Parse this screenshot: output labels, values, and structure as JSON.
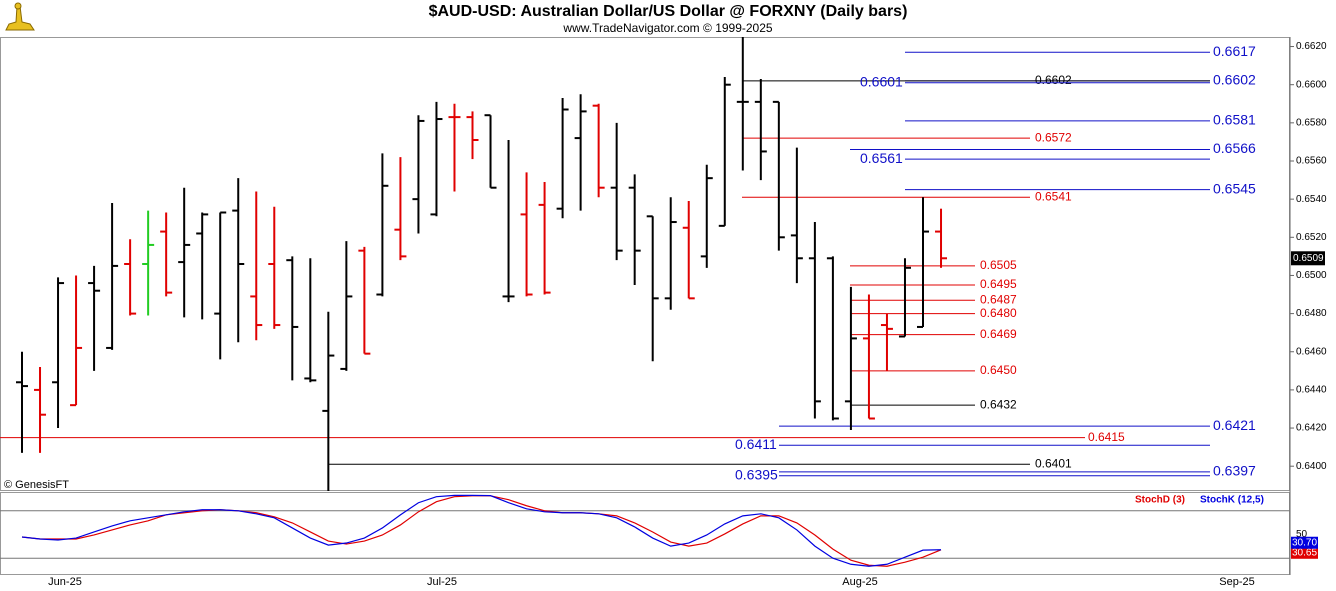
{
  "header": {
    "title": "$AUD-USD:  Australian Dollar/US Dollar @ FORXNY  (Daily bars)",
    "subtitle": "www.TradeNavigator.com © 1999-2025",
    "source": "© GenesisFT"
  },
  "chart_data": [
    {
      "type": "ohlc",
      "open": [
        0.6444,
        0.644,
        0.6444,
        0.6432,
        0.6496,
        0.6462,
        0.6506,
        0.6506,
        0.6523,
        0.6507,
        0.6522,
        0.648,
        0.6534,
        0.6489,
        0.6506,
        0.6508,
        0.6446,
        0.6429,
        0.6451,
        0.6513,
        0.649,
        0.6524,
        0.654,
        0.6532,
        0.6583,
        0.6583,
        0.6584,
        0.6489,
        0.6532,
        0.6537,
        0.6535,
        0.6572,
        0.6589,
        0.6546,
        0.6546,
        0.6531,
        0.6488,
        0.6525,
        0.651,
        0.6526,
        0.6591,
        0.6591,
        0.6591,
        0.6521,
        0.6509,
        0.6509,
        0.6434,
        0.6467,
        0.6474,
        0.6468,
        0.6473,
        0.6523
      ],
      "high": [
        0.646,
        0.6452,
        0.6499,
        0.65,
        0.6505,
        0.6538,
        0.6519,
        0.6534,
        0.6533,
        0.6546,
        0.6533,
        0.6533,
        0.6551,
        0.6544,
        0.6536,
        0.651,
        0.6509,
        0.6481,
        0.6518,
        0.6515,
        0.6564,
        0.6562,
        0.6584,
        0.6591,
        0.659,
        0.6586,
        0.6584,
        0.6571,
        0.6554,
        0.6549,
        0.6593,
        0.6595,
        0.659,
        0.658,
        0.6553,
        0.6531,
        0.6541,
        0.6539,
        0.6558,
        0.6604,
        0.6625,
        0.6603,
        0.6591,
        0.6567,
        0.6528,
        0.651,
        0.6494,
        0.649,
        0.648,
        0.6509,
        0.6541,
        0.6535
      ],
      "low": [
        0.6407,
        0.6407,
        0.642,
        0.6432,
        0.645,
        0.6461,
        0.6479,
        0.6479,
        0.6489,
        0.6478,
        0.6477,
        0.6456,
        0.6465,
        0.6466,
        0.6472,
        0.6445,
        0.6444,
        0.6387,
        0.645,
        0.6459,
        0.6489,
        0.6508,
        0.6522,
        0.6531,
        0.6544,
        0.6561,
        0.6546,
        0.6486,
        0.6489,
        0.649,
        0.653,
        0.6534,
        0.6541,
        0.6508,
        0.6495,
        0.6455,
        0.6482,
        0.6488,
        0.6504,
        0.6526,
        0.6555,
        0.655,
        0.6513,
        0.6496,
        0.6425,
        0.6424,
        0.6419,
        0.6425,
        0.645,
        0.6468,
        0.6473,
        0.6504
      ],
      "close": [
        0.6442,
        0.6427,
        0.6496,
        0.6462,
        0.6492,
        0.6505,
        0.648,
        0.6516,
        0.6491,
        0.6516,
        0.6532,
        0.6533,
        0.6506,
        0.6474,
        0.6474,
        0.6473,
        0.6445,
        0.6458,
        0.6489,
        0.6459,
        0.6547,
        0.651,
        0.6581,
        0.6582,
        0.6583,
        0.6571,
        0.6546,
        0.6489,
        0.649,
        0.6491,
        0.6587,
        0.6586,
        0.6546,
        0.6513,
        0.6513,
        0.6488,
        0.6528,
        0.6488,
        0.6551,
        0.66,
        0.6591,
        0.6565,
        0.652,
        0.6509,
        0.6434,
        0.6425,
        0.6467,
        0.6425,
        0.6472,
        0.6504,
        0.6523,
        0.6509
      ],
      "colors": [
        "#000000",
        "#e00000",
        "#000000",
        "#e00000",
        "#000000",
        "#000000",
        "#e00000",
        "#22cc22",
        "#e00000",
        "#000000",
        "#000000",
        "#000000",
        "#000000",
        "#e00000",
        "#e00000",
        "#000000",
        "#000000",
        "#000000",
        "#000000",
        "#e00000",
        "#000000",
        "#e00000",
        "#000000",
        "#000000",
        "#e00000",
        "#e00000",
        "#000000",
        "#000000",
        "#e00000",
        "#e00000",
        "#000000",
        "#000000",
        "#e00000",
        "#000000",
        "#000000",
        "#000000",
        "#000000",
        "#e00000",
        "#000000",
        "#000000",
        "#000000",
        "#000000",
        "#000000",
        "#000000",
        "#000000",
        "#000000",
        "#000000",
        "#e00000",
        "#e00000",
        "#000000",
        "#000000",
        "#e00000"
      ],
      "ylim": [
        0.6387,
        0.6625
      ],
      "yticks": [
        {
          "value": 0.662,
          "label": "0.6620"
        },
        {
          "value": 0.66,
          "label": "0.6600"
        },
        {
          "value": 0.658,
          "label": "0.6580"
        },
        {
          "value": 0.656,
          "label": "0.6560"
        },
        {
          "value": 0.654,
          "label": "0.6540"
        },
        {
          "value": 0.652,
          "label": "0.6520"
        },
        {
          "value": 0.65,
          "label": "0.6500"
        },
        {
          "value": 0.648,
          "label": "0.6480"
        },
        {
          "value": 0.646,
          "label": "0.6460"
        },
        {
          "value": 0.644,
          "label": "0.6440"
        },
        {
          "value": 0.642,
          "label": "0.6420"
        },
        {
          "value": 0.64,
          "label": "0.6400"
        }
      ],
      "last_price": {
        "value": 0.6509,
        "label": "0.6509"
      },
      "levels": [
        {
          "value": 0.6617,
          "label": "0.6617",
          "color": "#1010c8"
        },
        {
          "value": 0.6602,
          "label": "0.6602",
          "color": "#1010c8"
        },
        {
          "value": 0.6602,
          "label": "0.6602",
          "color": "#000000"
        },
        {
          "value": 0.6601,
          "label": "0.6601",
          "color": "#1010c8"
        },
        {
          "value": 0.6581,
          "label": "0.6581",
          "color": "#1010c8"
        },
        {
          "value": 0.6572,
          "label": "0.6572",
          "color": "#e00000"
        },
        {
          "value": 0.6566,
          "label": "0.6566",
          "color": "#1010c8"
        },
        {
          "value": 0.6561,
          "label": "0.6561",
          "color": "#1010c8"
        },
        {
          "value": 0.6545,
          "label": "0.6545",
          "color": "#1010c8"
        },
        {
          "value": 0.6541,
          "label": "0.6541",
          "color": "#e00000"
        },
        {
          "value": 0.6505,
          "label": "0.6505",
          "color": "#e00000"
        },
        {
          "value": 0.6495,
          "label": "0.6495",
          "color": "#e00000"
        },
        {
          "value": 0.6487,
          "label": "0.6487",
          "color": "#e00000"
        },
        {
          "value": 0.648,
          "label": "0.6480",
          "color": "#e00000"
        },
        {
          "value": 0.6469,
          "label": "0.6469",
          "color": "#e00000"
        },
        {
          "value": 0.645,
          "label": "0.6450",
          "color": "#e00000"
        },
        {
          "value": 0.6432,
          "label": "0.6432",
          "color": "#000000"
        },
        {
          "value": 0.6421,
          "label": "0.6421",
          "color": "#1010c8"
        },
        {
          "value": 0.6415,
          "label": "0.6415",
          "color": "#e00000"
        },
        {
          "value": 0.6411,
          "label": "0.6411",
          "color": "#1010c8"
        },
        {
          "value": 0.6401,
          "label": "0.6401",
          "color": "#000000"
        },
        {
          "value": 0.6397,
          "label": "0.6397",
          "color": "#1010c8"
        },
        {
          "value": 0.6395,
          "label": "0.6395",
          "color": "#1010c8"
        }
      ],
      "xlabels": [
        "Jun-25",
        "Jul-25",
        "Aug-25",
        "Sep-25"
      ]
    },
    {
      "type": "line",
      "ylim": [
        0,
        100
      ],
      "yticks": [
        50
      ],
      "levels": [
        20,
        80
      ],
      "series": [
        {
          "name": "StochD (3)",
          "color": "#e00000",
          "last_label": "30.65",
          "values": [
            46.8,
            44.3,
            44.3,
            44.3,
            49.4,
            55.8,
            62.1,
            67.3,
            74.9,
            77.5,
            80.0,
            81.3,
            80.0,
            77.5,
            72.4,
            64.7,
            53.2,
            41.7,
            37.9,
            41.7,
            49.4,
            62.1,
            78.7,
            91.5,
            97.9,
            99,
            99,
            94.1,
            86.4,
            80.0,
            77.5,
            77.5,
            76.2,
            73.6,
            64.7,
            53.2,
            40.4,
            35.3,
            39.2,
            50.7,
            63.4,
            73.6,
            73.6,
            64.7,
            49.4,
            31.5,
            17.4,
            11.1,
            9.8,
            14.9,
            21.3,
            30.65
          ]
        },
        {
          "name": "StochK (12,5)",
          "color": "#0000e0",
          "last_label": "30.70",
          "values": [
            46.8,
            44.3,
            43.0,
            45.5,
            53.2,
            60.9,
            67.3,
            71.1,
            74.9,
            78.7,
            81.3,
            81.3,
            80.0,
            76.2,
            71.1,
            58.3,
            45.5,
            36.6,
            39.2,
            45.5,
            58.3,
            74.9,
            90.2,
            97.9,
            99.5,
            99.5,
            99.2,
            90.2,
            82.5,
            78.7,
            77.5,
            77.5,
            76.2,
            71.1,
            59.6,
            45.5,
            35.3,
            39.2,
            49.4,
            63.4,
            73.6,
            76.2,
            71.1,
            55.8,
            35.3,
            20.0,
            12.3,
            9.8,
            12.3,
            21.3,
            30.2,
            30.7
          ]
        }
      ]
    }
  ]
}
